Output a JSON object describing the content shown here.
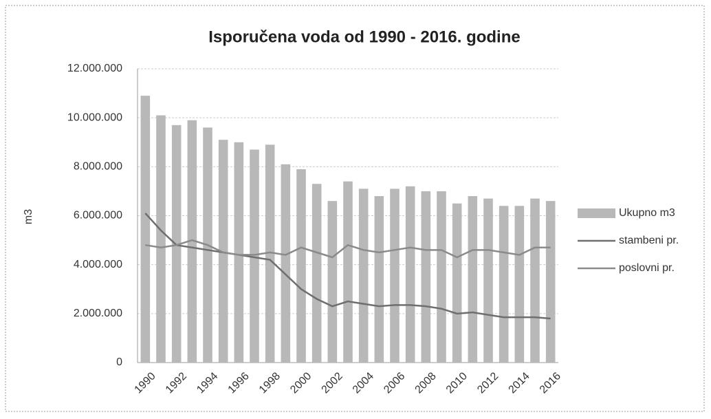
{
  "chart_data": {
    "type": "bar_line",
    "title": "Isporučena voda  od 1990 - 2016. godine",
    "y_label": "m3",
    "categories": [
      "1990",
      null,
      "1992",
      null,
      "1994",
      null,
      "1996",
      null,
      "1998",
      null,
      "2000",
      null,
      "2002",
      null,
      "2004",
      null,
      "2006",
      null,
      "2008",
      null,
      "2010",
      null,
      "2012",
      null,
      "2014",
      null,
      "2016"
    ],
    "series": [
      {
        "name": "Ukupno m3",
        "type": "bar",
        "color": "#b8b8b8",
        "values": [
          10900000,
          10100000,
          9700000,
          9900000,
          9600000,
          9100000,
          9000000,
          8700000,
          8900000,
          8100000,
          7900000,
          7300000,
          6600000,
          7400000,
          7100000,
          6800000,
          7100000,
          7200000,
          7000000,
          7000000,
          6500000,
          6800000,
          6700000,
          6400000,
          6400000,
          6700000,
          6600000
        ]
      },
      {
        "name": "stambeni pr.",
        "type": "line",
        "color": "#6e6e6e",
        "values": [
          6100000,
          5400000,
          4800000,
          4700000,
          4600000,
          4500000,
          4400000,
          4300000,
          4200000,
          3600000,
          3000000,
          2600000,
          2300000,
          2500000,
          2400000,
          2300000,
          2350000,
          2350000,
          2300000,
          2200000,
          2000000,
          2050000,
          1950000,
          1850000,
          1850000,
          1850000,
          1800000
        ]
      },
      {
        "name": "poslovni pr.",
        "type": "line",
        "color": "#8a8a8a",
        "values": [
          4800000,
          4700000,
          4800000,
          5000000,
          4800000,
          4500000,
          4400000,
          4400000,
          4500000,
          4400000,
          4700000,
          4500000,
          4300000,
          4800000,
          4600000,
          4500000,
          4600000,
          4700000,
          4600000,
          4600000,
          4300000,
          4600000,
          4600000,
          4500000,
          4400000,
          4700000,
          4700000
        ]
      }
    ],
    "ylim": [
      0,
      12000000
    ],
    "yticks": [
      0,
      {
        "value": 2000000,
        "label": "2.000.000"
      },
      {
        "value": 4000000,
        "label": "4.000.000"
      },
      {
        "value": 6000000,
        "label": "6.000.000"
      },
      {
        "value": 8000000,
        "label": "8.000.000"
      },
      {
        "value": 10000000,
        "label": "10.000.000"
      },
      {
        "value": 12000000,
        "label": "12.000.000"
      }
    ],
    "grid": true,
    "legend": "right"
  }
}
